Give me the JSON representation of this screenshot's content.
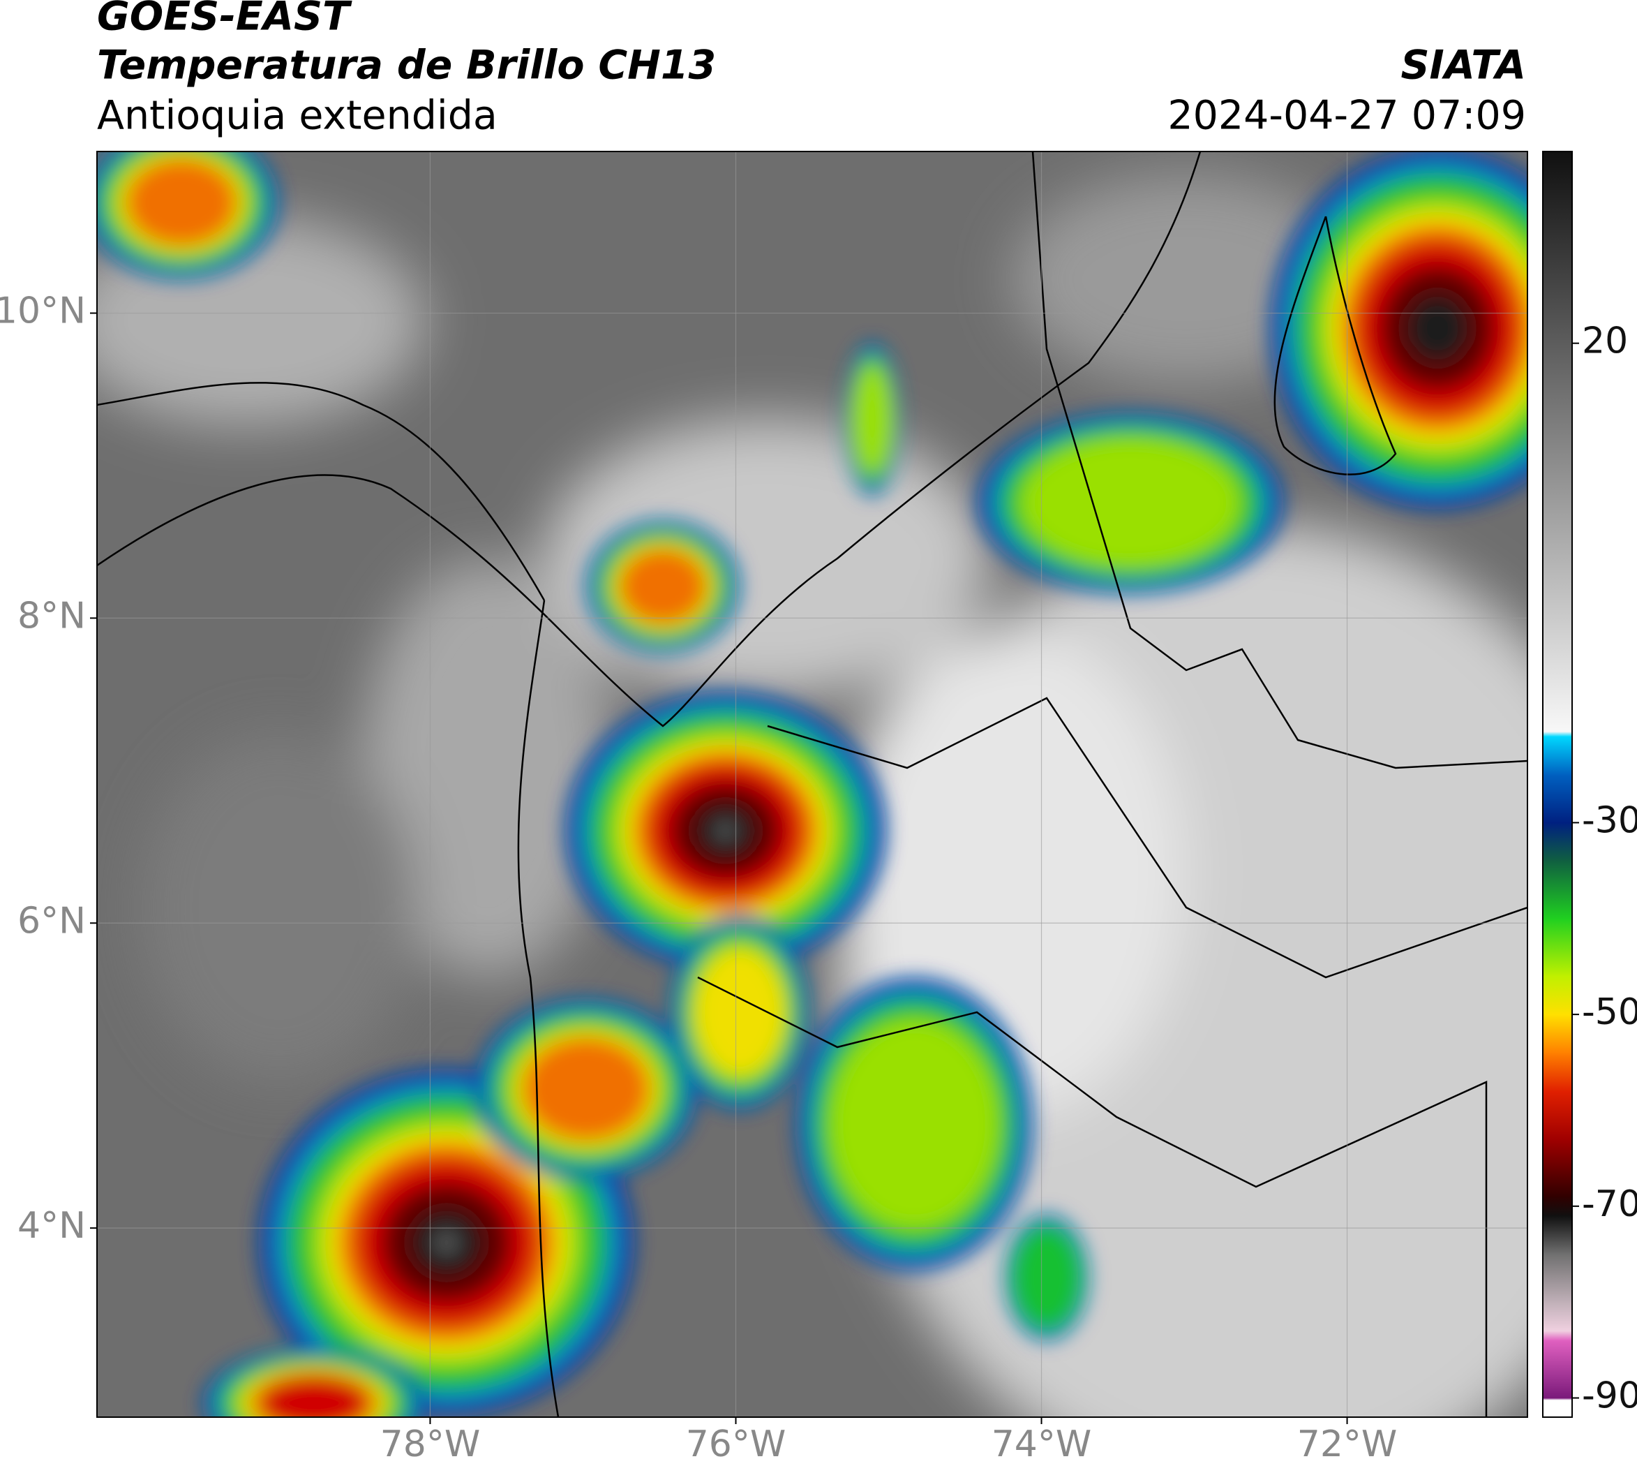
{
  "map": {
    "title": "GOES-EAST",
    "subtitle": "Temperatura de Brillo CH13",
    "region": "Antioquia extendida",
    "source": "SIATA",
    "datetime": "2024-04-27 07:09",
    "lon_lim": [
      -80.18,
      -70.82
    ],
    "lat_lim": [
      2.76,
      11.06
    ],
    "lon_ticks": [
      {
        "value": -78,
        "label": "78°W"
      },
      {
        "value": -76,
        "label": "76°W"
      },
      {
        "value": -74,
        "label": "74°W"
      },
      {
        "value": -72,
        "label": "72°W"
      }
    ],
    "lat_ticks": [
      {
        "value": 10,
        "label": "10°N"
      },
      {
        "value": 8,
        "label": "8°N"
      },
      {
        "value": 6,
        "label": "6°N"
      },
      {
        "value": 4,
        "label": "4°N"
      }
    ],
    "grid": true,
    "colorbar": {
      "lim": [
        -92,
        40
      ],
      "ticks": [
        20,
        -30,
        -50,
        -70,
        -90
      ],
      "stops": [
        {
          "value": -92,
          "color": "#ffffff"
        },
        {
          "value": -90.2,
          "color": "#ffffff"
        },
        {
          "value": -90,
          "color": "#7a1a7a"
        },
        {
          "value": -84,
          "color": "#e060c0"
        },
        {
          "value": -83,
          "color": "#f0d0e0"
        },
        {
          "value": -80,
          "color": "#c0b0b8"
        },
        {
          "value": -75,
          "color": "#707070"
        },
        {
          "value": -71,
          "color": "#101010"
        },
        {
          "value": -69,
          "color": "#300000"
        },
        {
          "value": -63,
          "color": "#a00000"
        },
        {
          "value": -58,
          "color": "#e02000"
        },
        {
          "value": -54,
          "color": "#ff8000"
        },
        {
          "value": -50,
          "color": "#ffe000"
        },
        {
          "value": -46,
          "color": "#c0f000"
        },
        {
          "value": -40,
          "color": "#20d020"
        },
        {
          "value": -34,
          "color": "#106040"
        },
        {
          "value": -30,
          "color": "#002080"
        },
        {
          "value": -25,
          "color": "#0060c0"
        },
        {
          "value": -21,
          "color": "#00d8ff"
        },
        {
          "value": -20.5,
          "color": "#f8f8f8"
        },
        {
          "value": 40,
          "color": "#101010"
        }
      ]
    }
  }
}
